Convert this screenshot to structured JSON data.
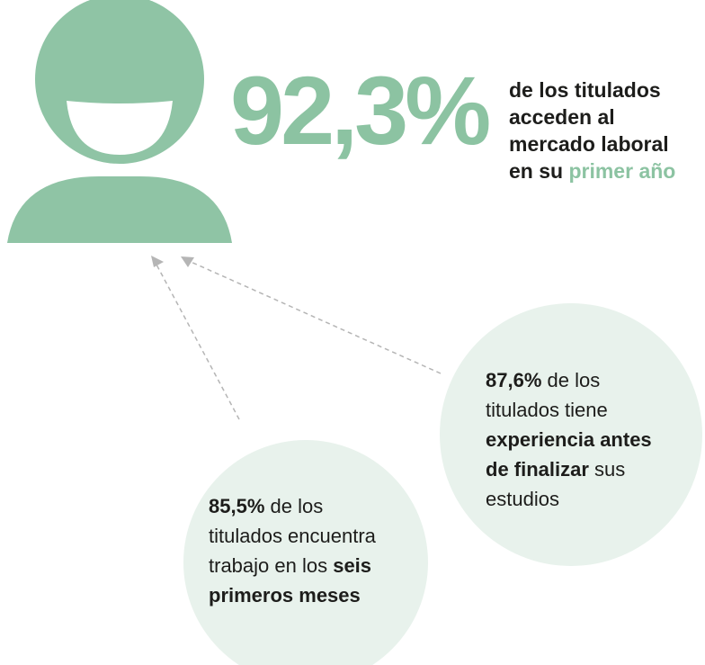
{
  "headline": {
    "value": "92,3%",
    "lines": [
      [
        "de los titulados"
      ],
      [
        "acceden al"
      ],
      [
        "mercado laboral"
      ],
      [
        "en su ",
        "primer año"
      ]
    ]
  },
  "bubble_right": {
    "lines": [
      [
        "87,6%",
        " de los"
      ],
      [
        "titulados tiene"
      ],
      [
        "experiencia antes"
      ],
      [
        "de finalizar",
        " sus"
      ],
      [
        "estudios"
      ]
    ]
  },
  "bubble_left": {
    "lines": [
      [
        "85,5%",
        " de los"
      ],
      [
        "titulados encuentra"
      ],
      [
        "trabajo en los ",
        "seis"
      ],
      [
        "primeros meses"
      ]
    ]
  }
}
